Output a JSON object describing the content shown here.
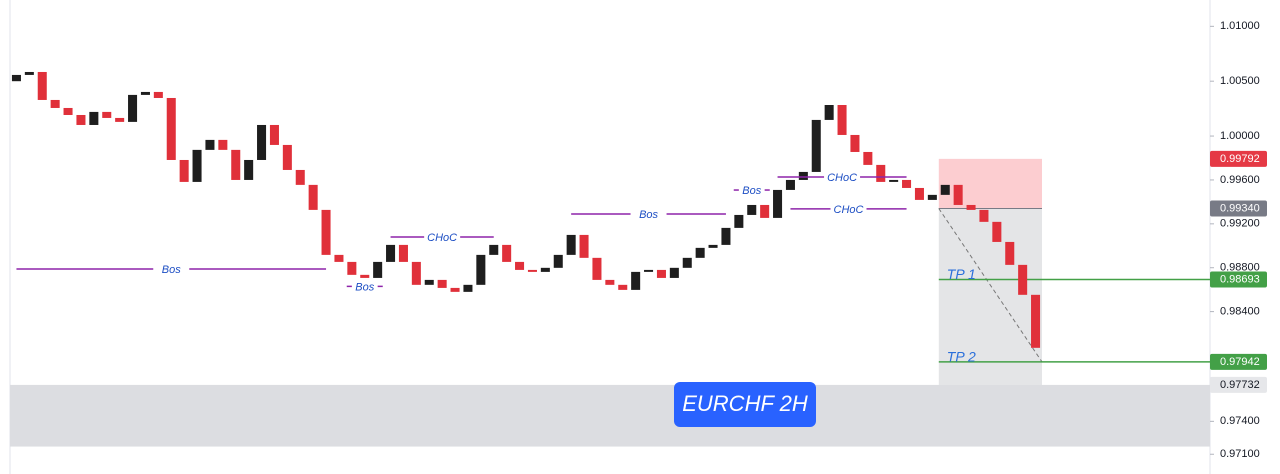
{
  "chart_data": {
    "type": "candlestick",
    "title": "EURCHF 2H",
    "up_color": "#1e1e1e",
    "down_color": "#e0303a",
    "ylim": [
      0.9692,
      1.0124
    ],
    "yticks": [
      {
        "value": 1.01,
        "label": "1.01000"
      },
      {
        "value": 1.005,
        "label": "1.00500"
      },
      {
        "value": 1.0,
        "label": "1.00000"
      },
      {
        "value": 0.996,
        "label": "0.99600"
      },
      {
        "value": 0.992,
        "label": "0.99200"
      },
      {
        "value": 0.988,
        "label": "0.98800"
      },
      {
        "value": 0.984,
        "label": "0.98400"
      },
      {
        "value": 0.974,
        "label": "0.97400"
      },
      {
        "value": 0.971,
        "label": "0.97100"
      }
    ],
    "open": [
      1.005,
      1.00557,
      1.00584,
      1.00329,
      1.00256,
      1.00192,
      1.00101,
      1.0022,
      1.00165,
      1.00129,
      1.00375,
      1.00402,
      1.00347,
      0.99782,
      0.99582,
      0.99874,
      0.99965,
      0.99874,
      0.996,
      0.99782,
      1.00101,
      0.99919,
      0.99691,
      0.99555,
      0.99327,
      0.98917,
      0.98853,
      0.98735,
      0.98707,
      0.98853,
      0.99008,
      0.98853,
      0.98644,
      0.98689,
      0.98616,
      0.9858,
      0.98644,
      0.98917,
      0.99008,
      0.98853,
      0.9878,
      0.98762,
      0.98799,
      0.98917,
      0.99099,
      0.9889,
      0.98689,
      0.98644,
      0.98598,
      0.98762,
      0.9878,
      0.98707,
      0.98799,
      0.9889,
      0.98981,
      0.99008,
      0.99163,
      0.99281,
      0.99372,
      0.99254,
      0.99509,
      0.996,
      0.99673,
      1.00147,
      1.00283,
      1.0001,
      0.99855,
      0.99737,
      0.99582,
      0.996,
      0.99527,
      0.99418,
      0.99464,
      0.99555,
      0.99372,
      0.99327,
      0.99218,
      0.99035,
      0.98826,
      0.98553
    ],
    "close": [
      1.00557,
      1.00584,
      1.00329,
      1.00256,
      1.00192,
      1.00101,
      1.0022,
      1.00165,
      1.00129,
      1.00375,
      1.00402,
      1.00347,
      0.99782,
      0.99582,
      0.99874,
      0.99965,
      0.99874,
      0.996,
      0.99782,
      1.00101,
      0.99919,
      0.99691,
      0.99555,
      0.99327,
      0.98917,
      0.98853,
      0.98735,
      0.98707,
      0.98853,
      0.99008,
      0.98853,
      0.98644,
      0.98689,
      0.98616,
      0.9858,
      0.98644,
      0.98917,
      0.99008,
      0.98853,
      0.9878,
      0.98762,
      0.98799,
      0.98917,
      0.99099,
      0.9889,
      0.98689,
      0.98644,
      0.98598,
      0.98762,
      0.9878,
      0.98707,
      0.98799,
      0.9889,
      0.98981,
      0.99008,
      0.99163,
      0.99281,
      0.99372,
      0.99254,
      0.99509,
      0.996,
      0.99673,
      1.00147,
      1.00283,
      1.0001,
      0.99855,
      0.99737,
      0.99582,
      0.996,
      0.99527,
      0.99418,
      0.99464,
      0.99555,
      0.99372,
      0.99327,
      0.99218,
      0.99035,
      0.98826,
      0.98553,
      0.9807
    ],
    "structure": [
      {
        "label": "Bos",
        "price": 0.98788,
        "from": 0,
        "to": 24
      },
      {
        "label": "Bos",
        "price": 0.9863,
        "from": 26,
        "to": 28
      },
      {
        "label": "CHoC",
        "price": 0.9908,
        "from": 29,
        "to": 37
      },
      {
        "label": "Bos",
        "price": 0.9929,
        "from": 43,
        "to": 55
      },
      {
        "label": "Bos",
        "price": 0.99508,
        "from": 56,
        "to": 58
      },
      {
        "label": "CHoC",
        "price": 0.99627,
        "from": 59,
        "to": 69
      },
      {
        "label": "CHoC",
        "price": 0.99336,
        "from": 60,
        "to": 69
      }
    ],
    "position": {
      "entry": 0.9934,
      "stop": 0.99792,
      "target": 0.97732,
      "from": 72,
      "to": 79
    },
    "targets": [
      {
        "label": "TP 1",
        "value": 0.98693
      },
      {
        "label": "TP 2",
        "value": 0.97942
      }
    ],
    "zone": [
      0.9717,
      0.97732
    ],
    "levels": [
      {
        "value": 0.99792,
        "label": "0.99792",
        "color": "#e53945"
      },
      {
        "value": 0.9934,
        "label": "0.99340",
        "color": "#787b86"
      },
      {
        "value": 0.98693,
        "label": "0.98693",
        "color": "#43a047"
      },
      {
        "value": 0.97942,
        "label": "0.97942",
        "color": "#43a047"
      },
      {
        "value": 0.97732,
        "label": "0.97732",
        "color": "#e6e7ea"
      }
    ]
  }
}
